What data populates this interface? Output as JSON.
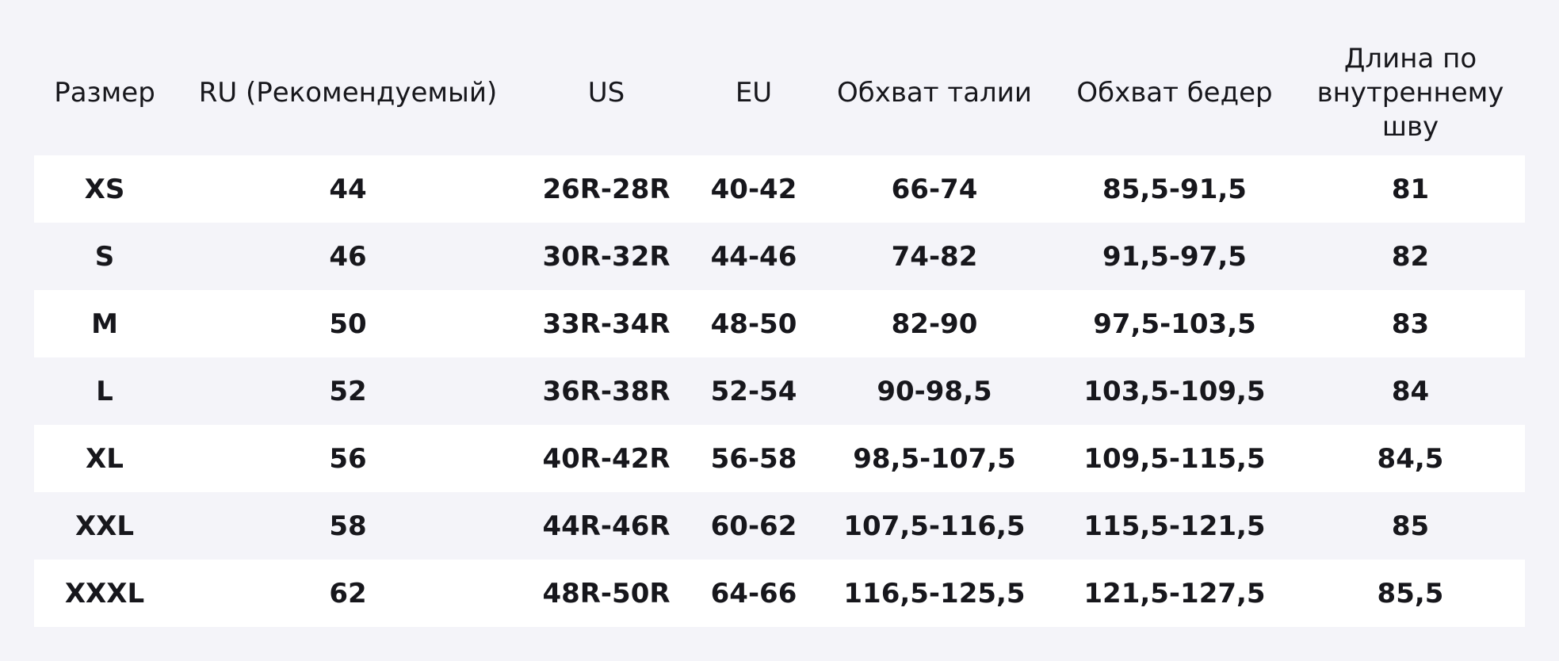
{
  "table": {
    "header": [
      "Размер",
      "RU (Рекомендуемый)",
      "US",
      "EU",
      "Обхват талии",
      "Обхват бедер",
      "Длина по внутреннему шву"
    ],
    "rows": [
      [
        "XS",
        "44",
        "26R-28R",
        "40-42",
        "66-74",
        "85,5-91,5",
        "81"
      ],
      [
        "S",
        "46",
        "30R-32R",
        "44-46",
        "74-82",
        "91,5-97,5",
        "82"
      ],
      [
        "M",
        "50",
        "33R-34R",
        "48-50",
        "82-90",
        "97,5-103,5",
        "83"
      ],
      [
        "L",
        "52",
        "36R-38R",
        "52-54",
        "90-98,5",
        "103,5-109,5",
        "84"
      ],
      [
        "XL",
        "56",
        "40R-42R",
        "56-58",
        "98,5-107,5",
        "109,5-115,5",
        "84,5"
      ],
      [
        "XXL",
        "58",
        "44R-46R",
        "60-62",
        "107,5-116,5",
        "115,5-121,5",
        "85"
      ],
      [
        "XXXL",
        "62",
        "48R-50R",
        "64-66",
        "116,5-125,5",
        "121,5-127,5",
        "85,5"
      ]
    ]
  }
}
